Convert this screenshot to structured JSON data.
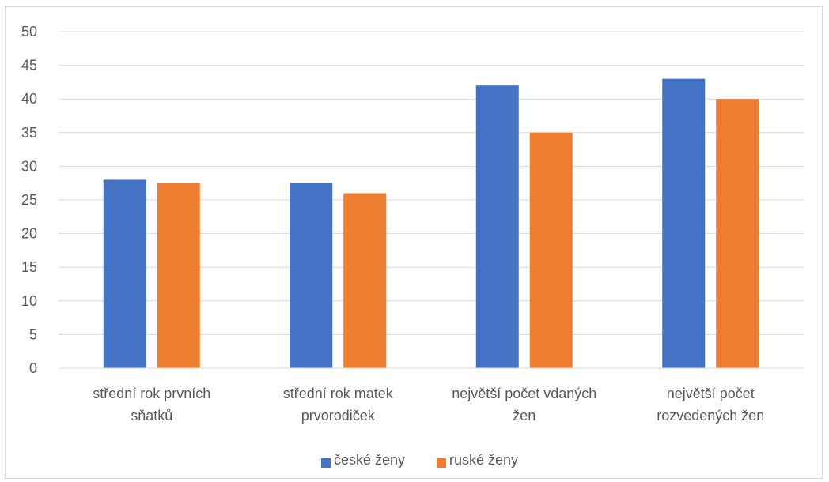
{
  "chart_data": {
    "type": "bar",
    "categories": [
      [
        "střední rok prvních",
        "sňatků"
      ],
      [
        "střední rok matek",
        "prvorodiček"
      ],
      [
        "největší počet vdaných",
        "žen"
      ],
      [
        "největší počet",
        "rozvedených žen"
      ]
    ],
    "series": [
      {
        "name": "české ženy",
        "color": "#4472c4",
        "values": [
          28,
          27.5,
          42,
          43
        ]
      },
      {
        "name": "ruské ženy",
        "color": "#ed7d31",
        "values": [
          27.5,
          26,
          35,
          40
        ]
      }
    ],
    "ylim": [
      0,
      50
    ],
    "yticks": [
      "0",
      "5",
      "10",
      "15",
      "20",
      "25",
      "30",
      "35",
      "40",
      "45",
      "50"
    ],
    "grid": true,
    "legend_position": "bottom",
    "grid_color": "#d9d9d9",
    "label_color": "#595959"
  }
}
